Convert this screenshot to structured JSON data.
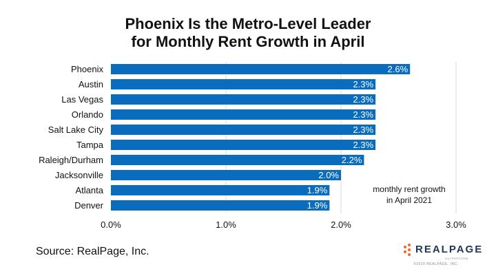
{
  "title": {
    "line1": "Phoenix  Is the Metro-Level Leader",
    "line2": "for Monthly Rent Growth in April"
  },
  "source": "Source: RealPage, Inc.",
  "logo": {
    "word": "REALPAGE",
    "tagline": "OUTPERFORM",
    "copyright": "©2020 REALPAGE, INC."
  },
  "colors": {
    "bar": "#0a6cbd",
    "bar_label": "#ffffff",
    "grid": "#d9d9d9",
    "text": "#111111",
    "logo_orange": "#f26522",
    "logo_navy": "#1e3556"
  },
  "chart_data": {
    "type": "bar",
    "orientation": "horizontal",
    "categories": [
      "Phoenix",
      "Austin",
      "Las Vegas",
      "Orlando",
      "Salt Lake City",
      "Tampa",
      "Raleigh/Durham",
      "Jacksonville",
      "Atlanta",
      "Denver"
    ],
    "values": [
      2.6,
      2.3,
      2.3,
      2.3,
      2.3,
      2.3,
      2.2,
      2.0,
      1.9,
      1.9
    ],
    "value_labels": [
      "2.6%",
      "2.3%",
      "2.3%",
      "2.3%",
      "2.3%",
      "2.3%",
      "2.2%",
      "2.0%",
      "1.9%",
      "1.9%"
    ],
    "xlim": [
      0,
      3
    ],
    "xticks": [
      0,
      1,
      2,
      3
    ],
    "xtick_labels": [
      "0.0%",
      "1.0%",
      "2.0%",
      "3.0%"
    ],
    "grid": true,
    "annotation": {
      "line1": "monthly rent growth",
      "line2": "in April 2021"
    }
  }
}
